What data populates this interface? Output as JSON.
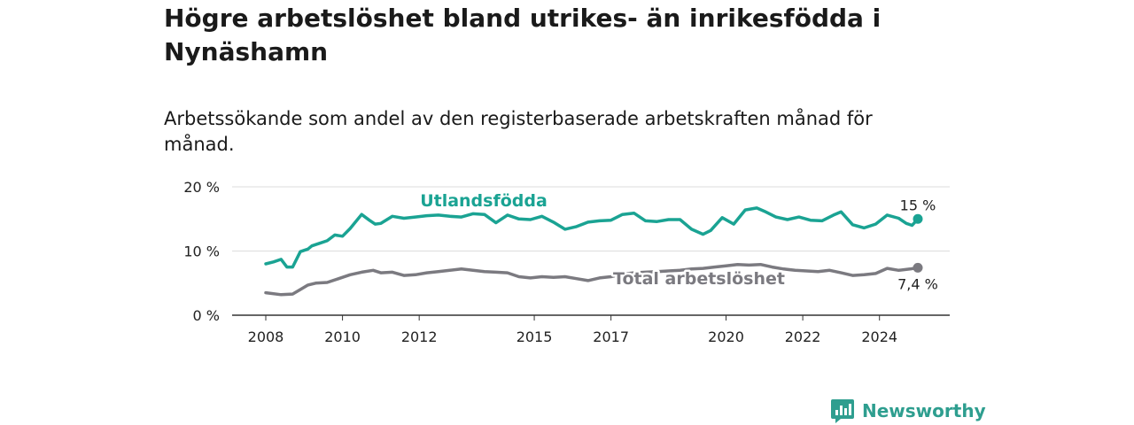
{
  "chart_data": {
    "type": "line",
    "title": "Högre arbetslöshet bland utrikes- än inrikesfödda i Nynäshamn",
    "subtitle": "Arbetssökande som andel av den registerbaserade arbetskraften månad för månad.",
    "x_ticks": [
      "2008",
      "2010",
      "2012",
      "2015",
      "2017",
      "2020",
      "2022",
      "2024"
    ],
    "y_ticks": [
      "0 %",
      "10 %",
      "20 %"
    ],
    "ylim": [
      0,
      20
    ],
    "xlim": [
      2008,
      2025
    ],
    "grid": true,
    "series": [
      {
        "name": "Utlandsfödda",
        "color": "#1aa393",
        "end_label": "15 %",
        "x": [
          2008.0,
          2008.2,
          2008.4,
          2008.55,
          2008.7,
          2008.9,
          2009.1,
          2009.2,
          2009.4,
          2009.6,
          2009.8,
          2010.0,
          2010.2,
          2010.5,
          2010.7,
          2010.85,
          2011.0,
          2011.3,
          2011.6,
          2011.9,
          2012.2,
          2012.5,
          2012.8,
          2013.1,
          2013.4,
          2013.7,
          2014.0,
          2014.3,
          2014.6,
          2014.9,
          2015.2,
          2015.5,
          2015.8,
          2016.1,
          2016.4,
          2016.7,
          2017.0,
          2017.3,
          2017.6,
          2017.9,
          2018.2,
          2018.5,
          2018.8,
          2019.1,
          2019.4,
          2019.6,
          2019.9,
          2020.2,
          2020.5,
          2020.8,
          2021.0,
          2021.3,
          2021.6,
          2021.9,
          2022.2,
          2022.5,
          2022.8,
          2023.0,
          2023.3,
          2023.6,
          2023.9,
          2024.2,
          2024.5,
          2024.7,
          2024.85,
          2025.0
        ],
        "values": [
          8.0,
          8.3,
          8.7,
          7.5,
          7.5,
          9.9,
          10.3,
          10.8,
          11.2,
          11.6,
          12.5,
          12.3,
          13.5,
          15.7,
          14.8,
          14.2,
          14.3,
          15.4,
          15.1,
          15.3,
          15.5,
          15.6,
          15.4,
          15.3,
          15.8,
          15.7,
          14.4,
          15.6,
          15.0,
          14.9,
          15.4,
          14.5,
          13.4,
          13.8,
          14.5,
          14.7,
          14.8,
          15.7,
          15.9,
          14.7,
          14.6,
          14.9,
          14.9,
          13.4,
          12.6,
          13.2,
          15.2,
          14.2,
          16.4,
          16.7,
          16.2,
          15.3,
          14.9,
          15.3,
          14.8,
          14.7,
          15.6,
          16.1,
          14.1,
          13.6,
          14.2,
          15.6,
          15.1,
          14.3,
          14.0,
          15.0
        ]
      },
      {
        "name": "Total arbetslöshet",
        "color": "#7b7a80",
        "end_label": "7,4 %",
        "x": [
          2008.0,
          2008.4,
          2008.7,
          2008.9,
          2009.1,
          2009.3,
          2009.6,
          2009.9,
          2010.2,
          2010.5,
          2010.8,
          2011.0,
          2011.3,
          2011.6,
          2011.9,
          2012.2,
          2012.5,
          2012.8,
          2013.1,
          2013.4,
          2013.7,
          2014.0,
          2014.3,
          2014.6,
          2014.9,
          2015.2,
          2015.5,
          2015.8,
          2016.1,
          2016.4,
          2016.7,
          2017.0,
          2017.3,
          2017.6,
          2017.9,
          2018.2,
          2018.5,
          2018.8,
          2019.1,
          2019.4,
          2019.7,
          2020.0,
          2020.3,
          2020.6,
          2020.9,
          2021.2,
          2021.5,
          2021.8,
          2022.1,
          2022.4,
          2022.7,
          2023.0,
          2023.3,
          2023.6,
          2023.9,
          2024.2,
          2024.5,
          2024.8,
          2025.0
        ],
        "values": [
          3.5,
          3.2,
          3.3,
          4.0,
          4.7,
          5.0,
          5.1,
          5.7,
          6.3,
          6.7,
          7.0,
          6.6,
          6.7,
          6.2,
          6.3,
          6.6,
          6.8,
          7.0,
          7.2,
          7.0,
          6.8,
          6.7,
          6.6,
          6.0,
          5.8,
          6.0,
          5.9,
          6.0,
          5.7,
          5.4,
          5.8,
          6.0,
          6.4,
          6.6,
          6.7,
          6.8,
          6.9,
          7.0,
          7.2,
          7.3,
          7.5,
          7.7,
          7.9,
          7.8,
          7.9,
          7.5,
          7.2,
          7.0,
          6.9,
          6.8,
          7.0,
          6.6,
          6.2,
          6.3,
          6.5,
          7.3,
          7.0,
          7.2,
          7.4
        ]
      }
    ]
  },
  "brand": {
    "name": "Newsworthy",
    "icon": "newsworthy-logo-icon",
    "color": "#2e9e8f"
  }
}
